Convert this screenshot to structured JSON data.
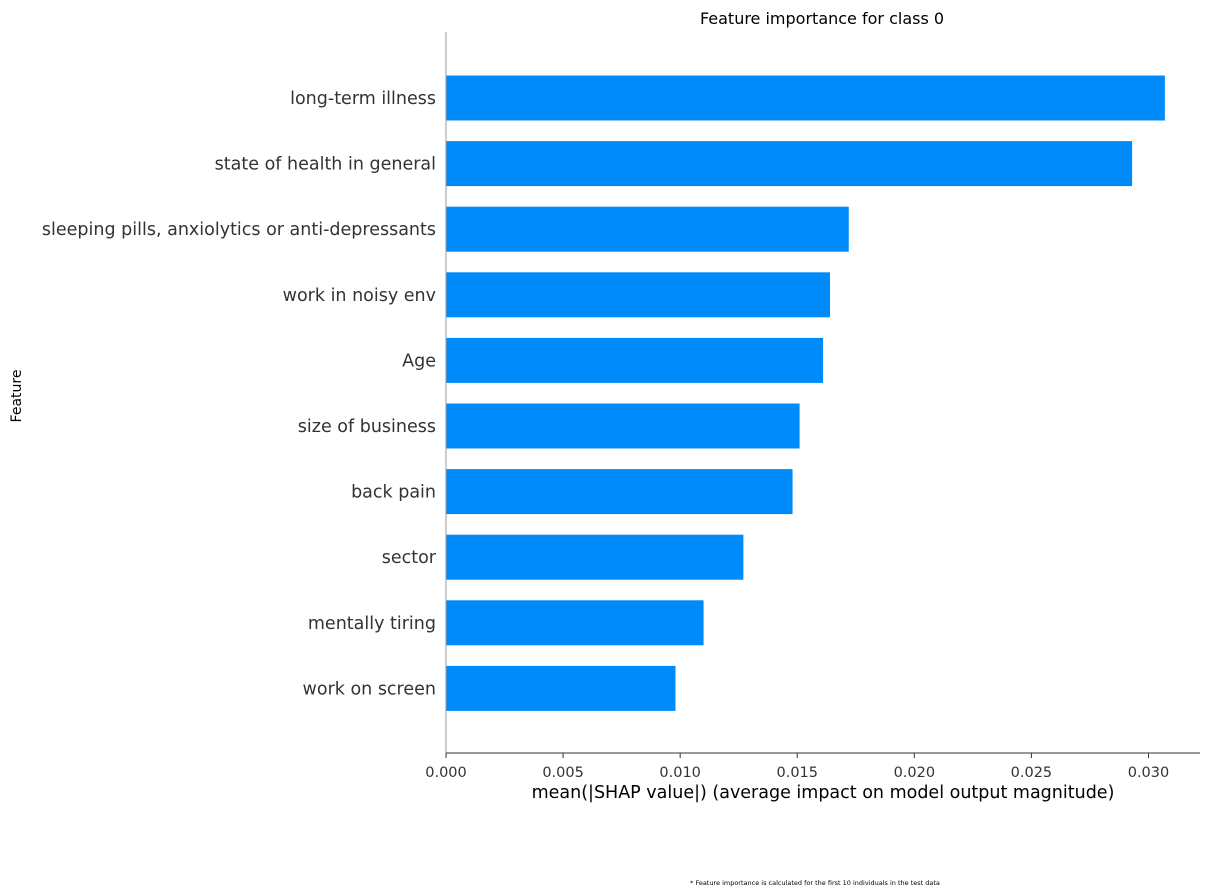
{
  "chart_data": {
    "type": "bar",
    "orientation": "horizontal",
    "title": "Feature importance for class 0",
    "xlabel": "mean(|SHAP value|) (average impact on model output magnitude)",
    "ylabel": "Feature",
    "categories": [
      "long-term illness",
      "state of health in general",
      "sleeping pills, anxiolytics or anti-depressants",
      "work in noisy env",
      "Age",
      "size of business",
      "back pain",
      "sector",
      "mentally tiring",
      "work on screen"
    ],
    "values": [
      0.0307,
      0.0293,
      0.0172,
      0.0164,
      0.0161,
      0.0151,
      0.0148,
      0.0127,
      0.011,
      0.0098
    ],
    "xlim": [
      0.0,
      0.0322
    ],
    "xticks": [
      0.0,
      0.005,
      0.01,
      0.015,
      0.02,
      0.025,
      0.03
    ],
    "xtick_labels": [
      "0.000",
      "0.005",
      "0.010",
      "0.015",
      "0.020",
      "0.025",
      "0.030"
    ],
    "bar_color": "#008bfb",
    "grid": false,
    "legend": "none",
    "footnote": "* Feature importance is calculated for the first 10 individuals in the test data"
  }
}
